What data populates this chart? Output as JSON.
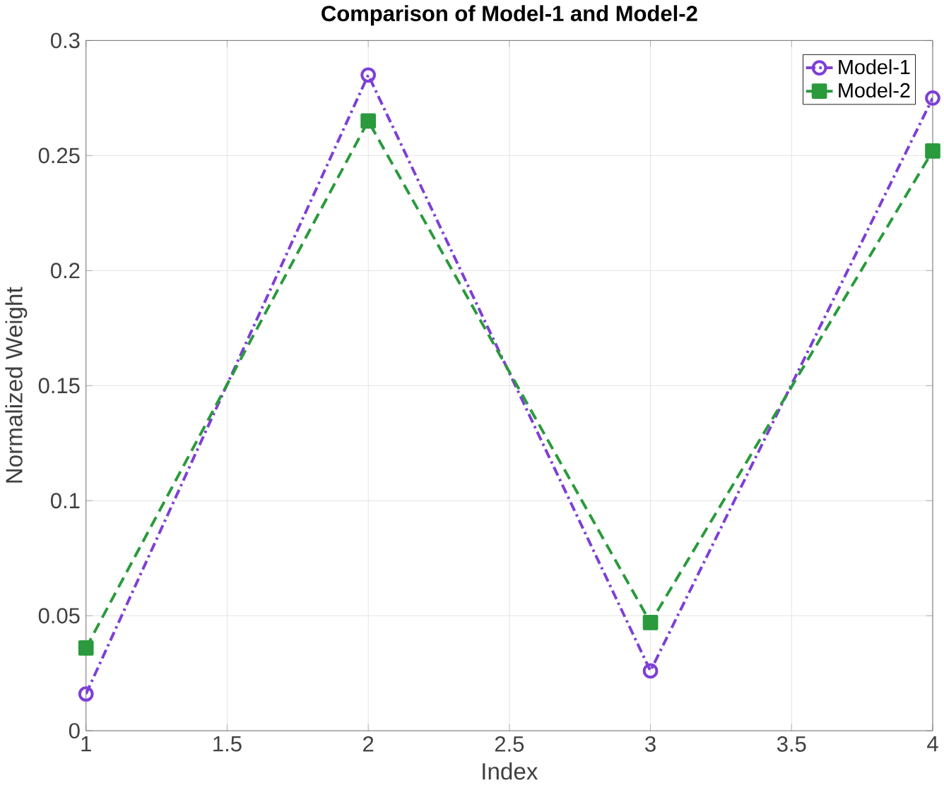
{
  "chart_data": {
    "type": "line",
    "title": "Comparison of Model-1 and Model-2",
    "xlabel": "Index",
    "ylabel": "Normalized Weight",
    "x": [
      1,
      2,
      3,
      4
    ],
    "series": [
      {
        "name": "Model-1",
        "color": "#7e3fd6",
        "values": [
          0.016,
          0.285,
          0.026,
          0.275
        ],
        "marker": "circle",
        "line_style": "dashdot"
      },
      {
        "name": "Model-2",
        "color": "#2a9a3c",
        "values": [
          0.036,
          0.265,
          0.047,
          0.252
        ],
        "marker": "square",
        "line_style": "dashed"
      }
    ],
    "xlim": [
      1,
      4
    ],
    "ylim": [
      0,
      0.3
    ],
    "xticks": [
      1,
      1.5,
      2,
      2.5,
      3,
      3.5,
      4
    ],
    "yticks": [
      0,
      0.05,
      0.1,
      0.15,
      0.2,
      0.25,
      0.3
    ],
    "grid": true,
    "legend": "top right"
  }
}
